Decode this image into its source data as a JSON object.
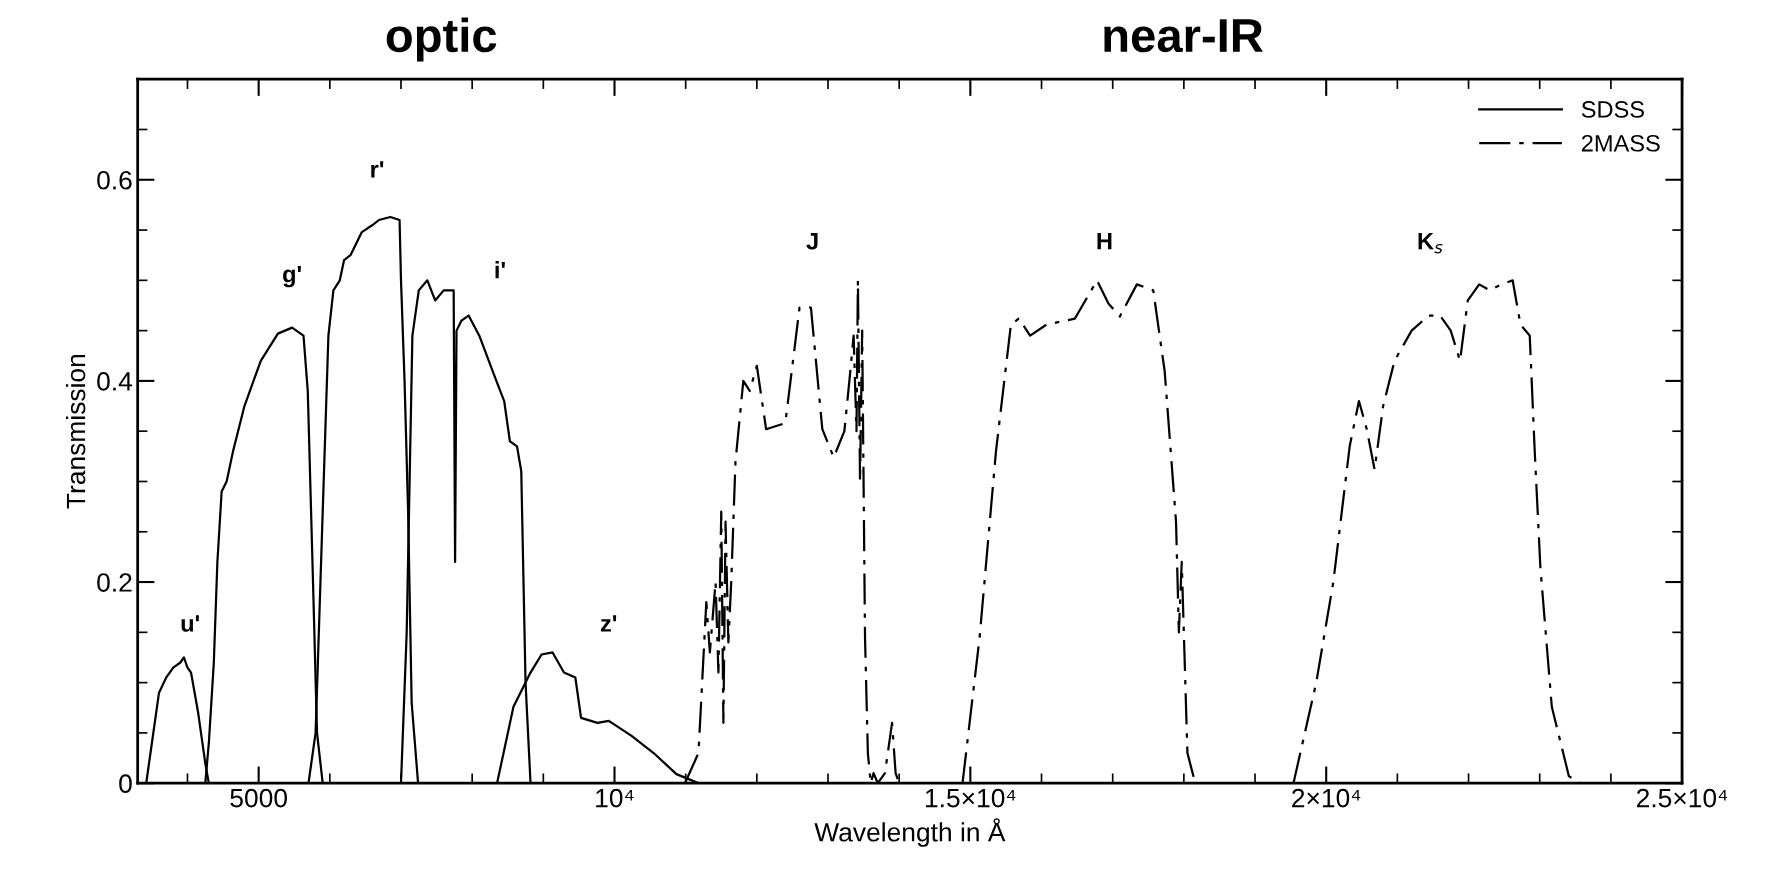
{
  "chart_data": {
    "type": "line",
    "xlabel": "Wavelength in Å",
    "ylabel": "Transmission",
    "annotations": [
      "optic",
      "near-IR",
      "u'",
      "g'",
      "r'",
      "i'",
      "z'",
      "J",
      "H",
      "K$_{s}$"
    ],
    "series": [
      {
        "name": "SDSS",
        "color": "#000000",
        "line_style": "solid",
        "x": [
          3420,
          3500,
          3600,
          3700,
          3800,
          3900,
          3950,
          4000,
          4050,
          4150,
          4250,
          4300
        ],
        "values": [
          0,
          0.04,
          0.09,
          0.105,
          0.115,
          0.12,
          0.125,
          0.115,
          0.11,
          0.07,
          0.02,
          0
        ]
      },
      {
        "color": "#000000",
        "line_style": "solid",
        "x": [
          4250,
          4300,
          4370,
          4420,
          4480,
          4550,
          4640,
          4800,
          5030,
          5270,
          5470,
          5630,
          5690,
          5760,
          5820,
          5900
        ],
        "values": [
          0,
          0.04,
          0.12,
          0.22,
          0.29,
          0.3,
          0.33,
          0.375,
          0.42,
          0.447,
          0.453,
          0.445,
          0.39,
          0.21,
          0.05,
          0
        ]
      },
      {
        "color": "#000000",
        "line_style": "solid",
        "x": [
          5700,
          5800,
          5900,
          5980,
          6050,
          6140,
          6200,
          6290,
          6450,
          6600,
          6690,
          6850,
          6980,
          7000,
          7050,
          7100,
          7150,
          7240
        ],
        "values": [
          0,
          0.05,
          0.27,
          0.445,
          0.49,
          0.5,
          0.52,
          0.525,
          0.548,
          0.555,
          0.56,
          0.563,
          0.56,
          0.5,
          0.4,
          0.27,
          0.08,
          0
        ]
      },
      {
        "color": "#000000",
        "line_style": "solid",
        "x": [
          7000,
          7080,
          7160,
          7250,
          7370,
          7480,
          7600,
          7700,
          7740,
          7760,
          7780,
          7850,
          7950,
          8100,
          8340,
          8450,
          8530,
          8630,
          8690,
          8750,
          8820
        ],
        "values": [
          0,
          0.15,
          0.445,
          0.49,
          0.5,
          0.48,
          0.49,
          0.49,
          0.49,
          0.22,
          0.45,
          0.46,
          0.465,
          0.445,
          0.4,
          0.38,
          0.34,
          0.335,
          0.31,
          0.1,
          0
        ]
      },
      {
        "color": "#000000",
        "line_style": "solid",
        "x": [
          8350,
          8580,
          8820,
          8975,
          9130,
          9290,
          9450,
          9530,
          9760,
          9920,
          10240,
          10550,
          10870,
          11180
        ],
        "values": [
          0,
          0.076,
          0.11,
          0.128,
          0.13,
          0.11,
          0.105,
          0.065,
          0.06,
          0.062,
          0.047,
          0.03,
          0.009,
          0
        ]
      },
      {
        "name": "2MASS",
        "color": "#000000",
        "line_style": "dashdot",
        "x": [
          10990,
          11180,
          11290,
          11340,
          11420,
          11460,
          11500,
          11530,
          11560,
          11600,
          11640,
          11700,
          11810,
          11900,
          12000,
          12130,
          12400,
          12600,
          12760,
          12920,
          13080,
          13230,
          13300,
          13360,
          13400,
          13420,
          13450,
          13480,
          13520,
          13560,
          13600,
          13640,
          13700,
          13800,
          13900,
          13950,
          14000
        ],
        "values": [
          0,
          0.03,
          0.18,
          0.13,
          0.2,
          0.11,
          0.27,
          0.06,
          0.26,
          0.14,
          0.2,
          0.32,
          0.4,
          0.39,
          0.415,
          0.352,
          0.358,
          0.473,
          0.473,
          0.352,
          0.324,
          0.35,
          0.4,
          0.445,
          0.35,
          0.5,
          0.3,
          0.45,
          0.145,
          0.03,
          0,
          0.01,
          0,
          0.01,
          0.06,
          0.01,
          0
        ]
      },
      {
        "color": "#000000",
        "line_style": "dashdot",
        "x": [
          14890,
          15130,
          15360,
          15570,
          15680,
          15840,
          16070,
          16470,
          16780,
          16940,
          17100,
          17340,
          17570,
          17730,
          17890,
          17930,
          17970,
          18050,
          18160
        ],
        "values": [
          0,
          0.145,
          0.33,
          0.456,
          0.462,
          0.445,
          0.456,
          0.462,
          0.5,
          0.477,
          0.464,
          0.496,
          0.49,
          0.41,
          0.26,
          0.15,
          0.22,
          0.03,
          0
        ]
      },
      {
        "color": "#000000",
        "line_style": "dashdot",
        "x": [
          19540,
          19860,
          20100,
          20330,
          20460,
          20570,
          20680,
          20800,
          20960,
          21200,
          21440,
          21600,
          21750,
          21880,
          21990,
          22150,
          22300,
          22460,
          22620,
          22730,
          22860,
          22930,
          23010,
          23170,
          23410,
          23570
        ],
        "values": [
          0,
          0.1,
          0.2,
          0.335,
          0.38,
          0.352,
          0.312,
          0.375,
          0.42,
          0.45,
          0.465,
          0.465,
          0.45,
          0.42,
          0.48,
          0.496,
          0.49,
          0.496,
          0.5,
          0.456,
          0.445,
          0.33,
          0.214,
          0.076,
          0.007,
          0
        ]
      }
    ],
    "xlim": [
      3300,
      25000
    ],
    "ylim": [
      0,
      0.7
    ],
    "xticks": [
      {
        "value": 4000,
        "label": null
      },
      5000,
      {
        "value": 6000,
        "label": null
      },
      {
        "value": 7000,
        "label": null
      },
      {
        "value": 8000,
        "label": null
      },
      {
        "value": 9000,
        "label": null
      },
      {
        "value": 10000,
        "label": "10⁴"
      },
      {
        "value": 11000,
        "label": null
      },
      {
        "value": 12000,
        "label": null
      },
      {
        "value": 13000,
        "label": null
      },
      {
        "value": 14000,
        "label": null
      },
      {
        "value": 15000,
        "label": "1.5×10⁴"
      },
      {
        "value": 16000,
        "label": null
      },
      {
        "value": 17000,
        "label": null
      },
      {
        "value": 18000,
        "label": null
      },
      {
        "value": 19000,
        "label": null
      },
      {
        "value": 20000,
        "label": "2×10⁴"
      },
      {
        "value": 21000,
        "label": null
      },
      {
        "value": 22000,
        "label": null
      },
      {
        "value": 23000,
        "label": null
      },
      {
        "value": 24000,
        "label": null
      },
      {
        "value": 25000,
        "label": "2.5×10⁴"
      }
    ],
    "yticks": [
      0,
      {
        "value": 0.05,
        "label": null
      },
      {
        "value": 0.1,
        "label": null
      },
      {
        "value": 0.15,
        "label": null
      },
      0.2,
      {
        "value": 0.25,
        "label": null
      },
      {
        "value": 0.3,
        "label": null
      },
      {
        "value": 0.35,
        "label": null
      },
      0.4,
      {
        "value": 0.45,
        "label": null
      },
      {
        "value": 0.5,
        "label": null
      },
      {
        "value": 0.55,
        "label": null
      },
      0.6,
      {
        "value": 0.65,
        "label": null
      }
    ],
    "grid": false,
    "legend": "top right"
  }
}
